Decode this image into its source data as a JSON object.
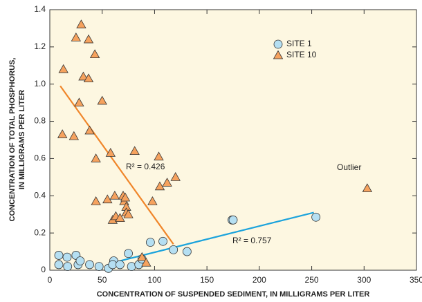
{
  "chart_data": {
    "type": "scatter",
    "xlabel": "CONCENTRATION OF SUSPENDED SEDIMENT, IN MILLIGRAMS PER LITER",
    "ylabel": [
      "CONCENTRATION OF TOTAL PHOSPHORUS,",
      "IN MILLIGRAMS PER LITER"
    ],
    "xlim": [
      0,
      350
    ],
    "ylim": [
      0,
      1.4
    ],
    "xticks": [
      0,
      50,
      100,
      150,
      200,
      250,
      300,
      350
    ],
    "yticks": [
      0,
      0.2,
      0.4,
      0.6,
      0.8,
      {
        "value": 1,
        "label": "1.0"
      },
      1.2,
      1.4
    ],
    "legend": "upper right",
    "series": [
      {
        "name": "SITE 1",
        "marker": "circle",
        "color": "#b5dff2",
        "x": [
          8.6,
          8.6,
          16.5,
          17,
          25,
          27,
          29,
          38,
          47,
          56,
          61,
          60,
          67,
          75,
          78,
          85,
          88,
          96,
          108,
          118,
          131,
          174,
          175,
          254
        ],
        "values": [
          0.03,
          0.08,
          0.07,
          0.02,
          0.08,
          0.03,
          0.05,
          0.03,
          0.02,
          0.01,
          0.05,
          0.03,
          0.03,
          0.09,
          0.02,
          0.03,
          0.06,
          0.15,
          0.155,
          0.11,
          0.1,
          0.27,
          0.27,
          0.285
        ]
      },
      {
        "name": "SITE 10",
        "marker": "triangle",
        "color": "#f6a25e",
        "x": [
          13,
          12,
          23,
          25,
          30,
          28,
          32,
          37,
          37,
          43,
          38,
          44,
          44,
          50,
          55,
          58,
          60,
          62,
          63,
          67,
          70,
          71,
          72,
          73,
          73,
          75,
          81,
          98,
          104,
          105,
          112,
          120,
          88,
          92,
          303
        ],
        "values": [
          1.08,
          0.73,
          0.72,
          1.25,
          1.32,
          0.9,
          1.04,
          1.03,
          1.24,
          1.16,
          0.75,
          0.6,
          0.37,
          0.91,
          0.38,
          0.63,
          0.27,
          0.4,
          0.29,
          0.28,
          0.4,
          0.37,
          0.39,
          0.34,
          0.31,
          0.3,
          0.64,
          0.37,
          0.61,
          0.45,
          0.47,
          0.5,
          0.07,
          0.04,
          0.44
        ]
      }
    ],
    "trend_lines": [
      {
        "color": "#f0862a",
        "x": [
          10,
          118
        ],
        "values": [
          0.99,
          0.14
        ]
      },
      {
        "color": "#1ba3dc",
        "x": [
          60,
          252
        ],
        "values": [
          0.04,
          0.31
        ]
      }
    ],
    "annotations": [
      {
        "text": "R² = 0.426"
      },
      {
        "text": "R² = 0.757"
      },
      {
        "text": "Outlier"
      }
    ]
  }
}
